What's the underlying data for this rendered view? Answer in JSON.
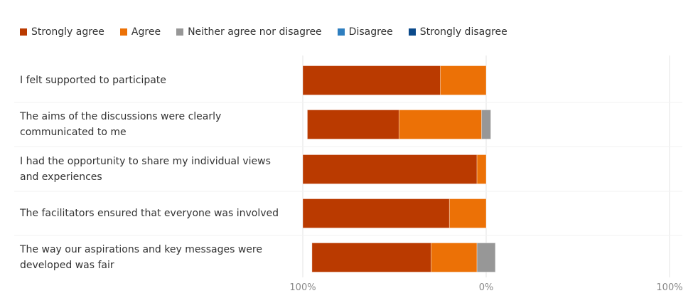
{
  "chart_data": {
    "type": "bar",
    "orientation": "horizontal",
    "stacking": "diverging",
    "legend_position": "top-left",
    "grid": true,
    "xlim": [
      -100,
      100
    ],
    "x_ticks": [
      "100%",
      "0%",
      "100%"
    ],
    "categories": [
      "I felt supported to participate",
      "The aims of the discussions were clearly communicated to me",
      "I had the opportunity to share my individual views and experiences",
      "The facilitators ensured that everyone was involved",
      "The way our aspirations and key messages were developed was fair"
    ],
    "series": [
      {
        "name": "Strongly agree",
        "color": "#BA3A00",
        "values": [
          75,
          50,
          95,
          80,
          65
        ]
      },
      {
        "name": "Agree",
        "color": "#EC7106",
        "values": [
          25,
          45,
          5,
          20,
          25
        ]
      },
      {
        "name": "Neither agree nor disagree",
        "color": "#979797",
        "values": [
          0,
          5,
          0,
          0,
          10
        ]
      },
      {
        "name": "Disagree",
        "color": "#2E7EBF",
        "values": [
          0,
          0,
          0,
          0,
          0
        ]
      },
      {
        "name": "Strongly disagree",
        "color": "#0B4A8B",
        "values": [
          0,
          0,
          0,
          0,
          0
        ]
      }
    ]
  }
}
